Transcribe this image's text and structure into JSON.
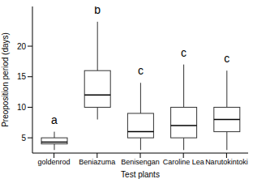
{
  "chart_data": {
    "type": "box",
    "x_label": "Test plants",
    "y_label": "Preoposition period (days)",
    "categories": [
      "goldenrod",
      "Beniazuma",
      "Benisengan",
      "Caroline Lea",
      "Narutokintoki"
    ],
    "min": [
      3,
      8,
      3,
      3,
      3
    ],
    "q1": [
      4,
      10,
      5,
      5,
      6
    ],
    "median": [
      4.3,
      12,
      6,
      7,
      8
    ],
    "q3": [
      5,
      16,
      9,
      10,
      10
    ],
    "max": [
      6,
      24,
      14,
      17,
      16
    ],
    "annotations": [
      "a",
      "b",
      "c",
      "c",
      "c"
    ],
    "ylim": [
      2.5,
      26.5
    ],
    "yticks": [
      5,
      10,
      15,
      20
    ],
    "grid": false,
    "color": "#ffffff"
  }
}
